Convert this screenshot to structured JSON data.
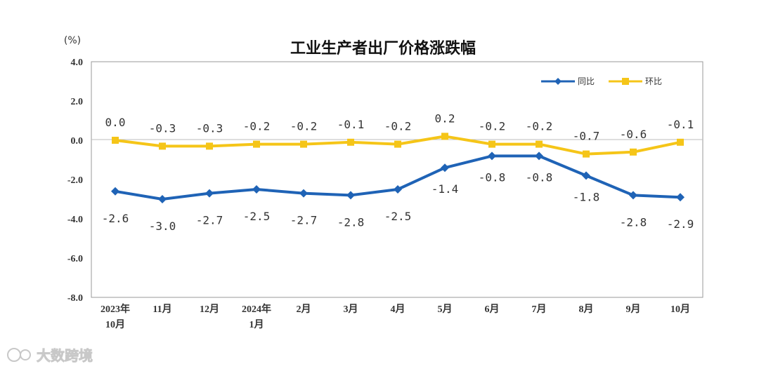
{
  "chart_data": {
    "type": "line",
    "title": "工业生产者出厂价格涨跌幅",
    "unit": "(%)",
    "categories": [
      [
        "2023年",
        "10月"
      ],
      [
        "11月"
      ],
      [
        "12月"
      ],
      [
        "2024年",
        "1月"
      ],
      [
        "2月"
      ],
      [
        "3月"
      ],
      [
        "4月"
      ],
      [
        "5月"
      ],
      [
        "6月"
      ],
      [
        "7月"
      ],
      [
        "8月"
      ],
      [
        "9月"
      ],
      [
        "10月"
      ]
    ],
    "ylim": [
      -8.0,
      4.0
    ],
    "yticks": [
      "4.0",
      "2.0",
      "0.0",
      "-2.0",
      "-4.0",
      "-6.0",
      "-8.0"
    ],
    "series": [
      {
        "name": "同比",
        "color": "#1f63b6",
        "marker": "diamond",
        "values": [
          -2.6,
          -3.0,
          -2.7,
          -2.5,
          -2.7,
          -2.8,
          -2.5,
          -1.4,
          -0.8,
          -0.8,
          -1.8,
          -2.8,
          -2.9
        ],
        "labels": [
          "-2.6",
          "-3.0",
          "-2.7",
          "-2.5",
          "-2.7",
          "-2.8",
          "-2.5",
          "-1.4",
          "-0.8",
          "-0.8",
          "-1.8",
          "-2.8",
          "-2.9"
        ]
      },
      {
        "name": "环比",
        "color": "#f5c518",
        "marker": "square",
        "values": [
          0.0,
          -0.3,
          -0.3,
          -0.2,
          -0.2,
          -0.1,
          -0.2,
          0.2,
          -0.2,
          -0.2,
          -0.7,
          -0.6,
          -0.1
        ],
        "labels": [
          "0.0",
          "-0.3",
          "-0.3",
          "-0.2",
          "-0.2",
          "-0.1",
          "-0.2",
          "0.2",
          "-0.2",
          "-0.2",
          "-0.7",
          "-0.6",
          "-0.1"
        ]
      }
    ],
    "legend_position": "top-right",
    "grid": false
  },
  "watermark": {
    "text": "大数跨境"
  }
}
